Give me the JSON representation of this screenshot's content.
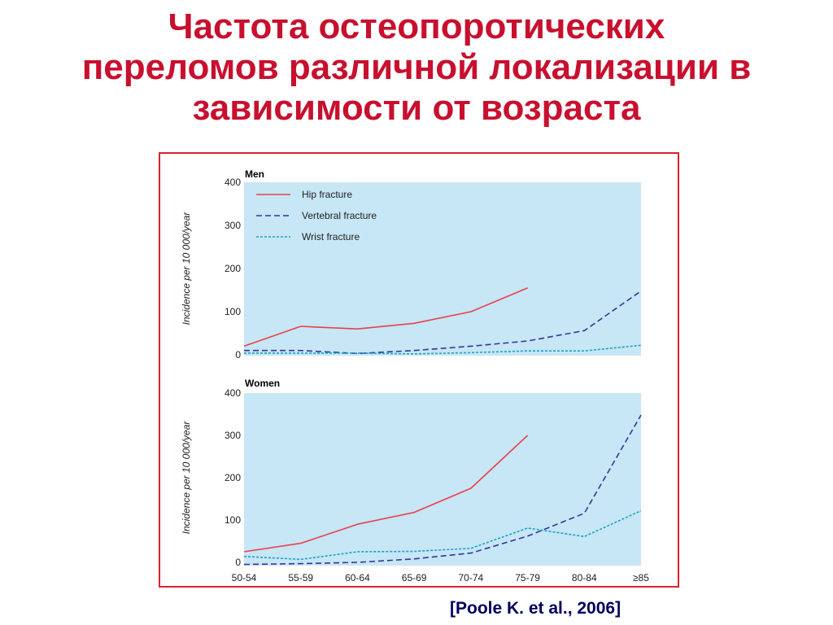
{
  "slide": {
    "title_lines": [
      "Частота остеопоротических",
      "переломов различной локализации в",
      "зависимости от возраста"
    ],
    "citation": "[Poole K. et al., 2006]"
  },
  "colors": {
    "title": "#c8102e",
    "frame": "#d9232d",
    "plot_bg": "#c7e6f6",
    "hip": "#e8414b",
    "vertebral": "#34379a",
    "wrist": "#1aa3c4",
    "citation": "#000060"
  },
  "chart_data": [
    {
      "type": "line",
      "title": "Men",
      "xlabel": "",
      "ylabel": "Incidence per 10 000/year",
      "categories": [
        "50-54",
        "55-59",
        "60-64",
        "65-69",
        "70-74",
        "75-79",
        "80-84",
        "≥85"
      ],
      "ylim": [
        0,
        400
      ],
      "yticks": [
        0,
        100,
        200,
        300,
        400
      ],
      "grid": false,
      "legend": "top-left",
      "series": [
        {
          "name": "Hip fracture",
          "style": "solid",
          "values": [
            20,
            66,
            60,
            73,
            100,
            155,
            null,
            null
          ]
        },
        {
          "name": "Vertebral fracture",
          "style": "dashed",
          "values": [
            10,
            10,
            3,
            10,
            20,
            32,
            56,
            148
          ]
        },
        {
          "name": "Wrist fracture",
          "style": "dotted",
          "values": [
            4,
            4,
            4,
            2,
            5,
            9,
            9,
            22
          ]
        }
      ]
    },
    {
      "type": "line",
      "title": "Women",
      "xlabel": "",
      "ylabel": "Incidence per 10 000/year",
      "categories": [
        "50-54",
        "55-59",
        "60-64",
        "65-69",
        "70-74",
        "75-79",
        "80-84",
        "≥85"
      ],
      "ylim": [
        0,
        400
      ],
      "yticks": [
        0,
        100,
        200,
        300,
        400
      ],
      "grid": false,
      "series": [
        {
          "name": "Hip fracture",
          "style": "solid",
          "values": [
            25,
            45,
            90,
            118,
            175,
            300,
            null,
            null
          ]
        },
        {
          "name": "Vertebral fracture",
          "style": "dashed",
          "values": [
            -5,
            -3,
            0,
            8,
            22,
            62,
            116,
            348
          ]
        },
        {
          "name": "Wrist fracture",
          "style": "dotted",
          "values": [
            14,
            7,
            25,
            26,
            33,
            81,
            61,
            122
          ]
        }
      ]
    }
  ]
}
